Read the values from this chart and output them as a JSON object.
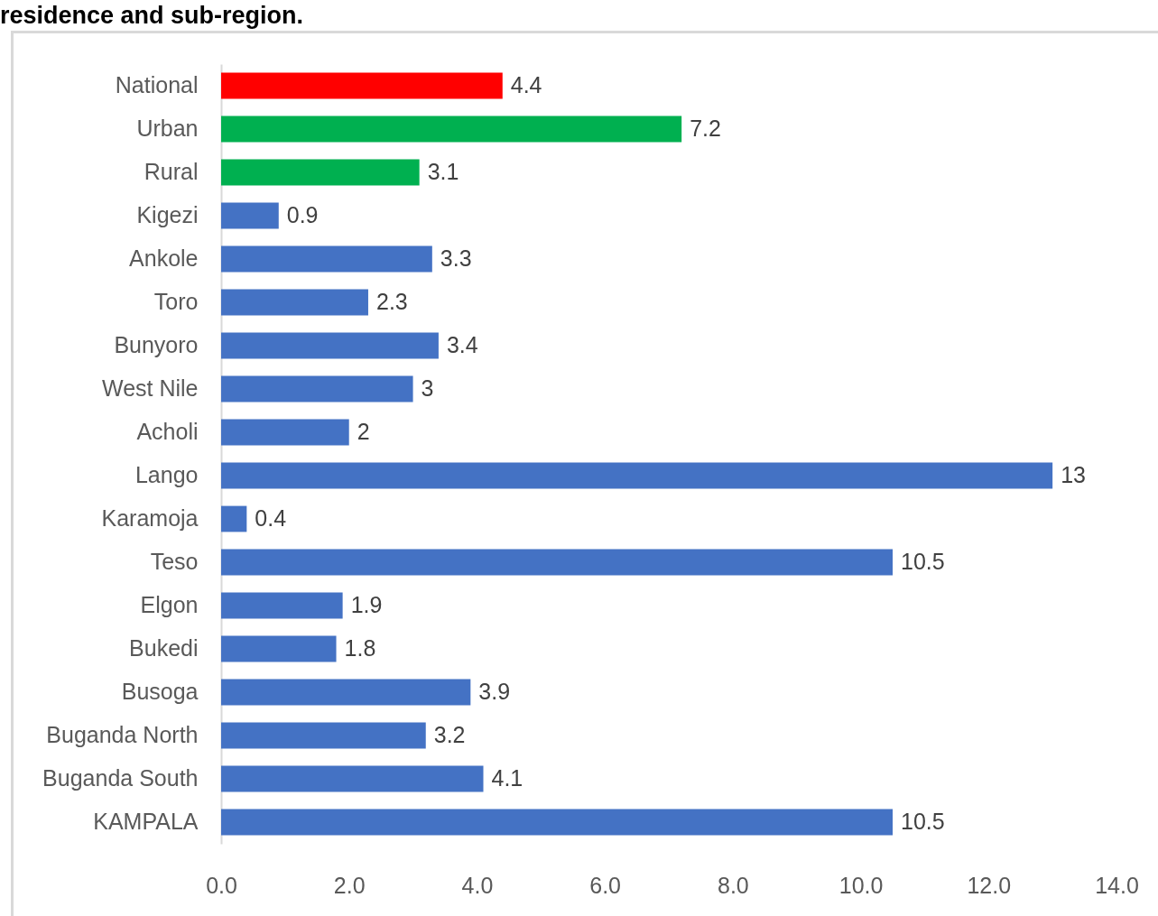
{
  "chart_data": {
    "type": "bar",
    "orientation": "horizontal",
    "title": "residence and sub-region.",
    "categories": [
      "National",
      "Urban",
      "Rural",
      "Kigezi",
      "Ankole",
      "Toro",
      "Bunyoro",
      "West Nile",
      "Acholi",
      "Lango",
      "Karamoja",
      "Teso",
      "Elgon",
      "Bukedi",
      "Busoga",
      "Buganda North",
      "Buganda South",
      "KAMPALA"
    ],
    "values": [
      4.4,
      7.2,
      3.1,
      0.9,
      3.3,
      2.3,
      3.4,
      3,
      2,
      13,
      0.4,
      10.5,
      1.9,
      1.8,
      3.9,
      3.2,
      4.1,
      10.5
    ],
    "colors": [
      "#ff0000",
      "#00b050",
      "#00b050",
      "#4472c4",
      "#4472c4",
      "#4472c4",
      "#4472c4",
      "#4472c4",
      "#4472c4",
      "#4472c4",
      "#4472c4",
      "#4472c4",
      "#4472c4",
      "#4472c4",
      "#4472c4",
      "#4472c4",
      "#4472c4",
      "#4472c4"
    ],
    "xlim": [
      0,
      14
    ],
    "xticks": [
      {
        "value": 0,
        "label": "0.0"
      },
      {
        "value": 2,
        "label": "2.0"
      },
      {
        "value": 4,
        "label": "4.0"
      },
      {
        "value": 6,
        "label": "6.0"
      },
      {
        "value": 8,
        "label": "8.0"
      },
      {
        "value": 10,
        "label": "10.0"
      },
      {
        "value": 12,
        "label": "12.0"
      },
      {
        "value": 14,
        "label": "14.0"
      }
    ],
    "data_labels": true
  }
}
